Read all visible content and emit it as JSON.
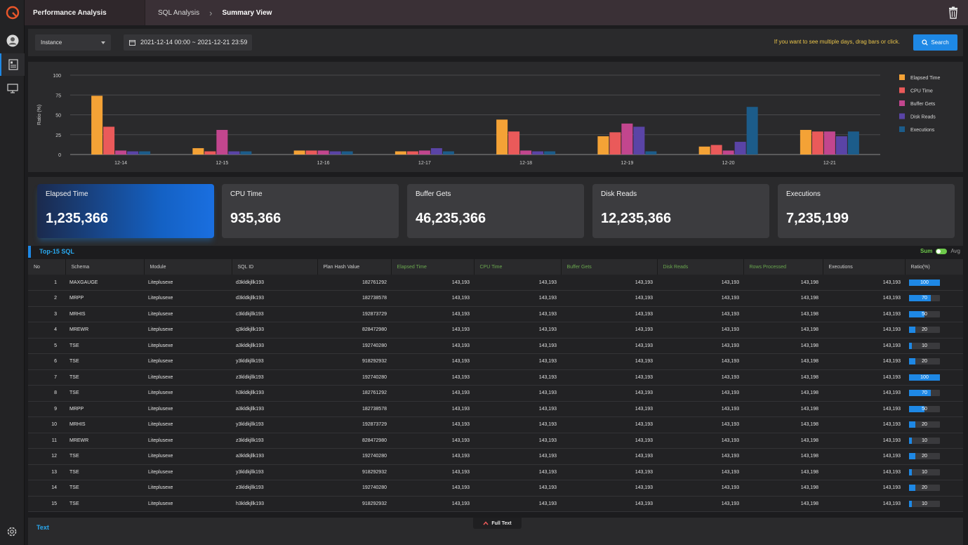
{
  "header": {
    "tab": "Performance Analysis",
    "crumb": "SQL Analysis",
    "current": "Summary View"
  },
  "filter": {
    "instance": "Instance",
    "date_range": "2021-12-14 00:00 ~ 2021-12-21 23:59",
    "hint": "If you want to see multiple days, drag bars or click.",
    "search_label": "Search"
  },
  "chart_data": {
    "type": "bar",
    "ylabel": "Ratio (%)",
    "ylim": [
      0,
      100
    ],
    "yticks": [
      0,
      25,
      50,
      75,
      100
    ],
    "categories": [
      "12-14",
      "12-15",
      "12-16",
      "12-17",
      "12-18",
      "12-19",
      "12-20",
      "12-21"
    ],
    "series": [
      {
        "name": "Elapsed Time",
        "color": "#f4a236",
        "values": [
          74,
          8,
          5,
          4,
          44,
          23,
          10,
          31
        ]
      },
      {
        "name": "CPU Time",
        "color": "#ea5a5a",
        "values": [
          35,
          4,
          5,
          4,
          29,
          28,
          12,
          29
        ]
      },
      {
        "name": "Buffer Gets",
        "color": "#c2468e",
        "values": [
          5,
          31,
          5,
          5,
          5,
          39,
          5,
          29
        ]
      },
      {
        "name": "Disk Reads",
        "color": "#5a44a6",
        "values": [
          4,
          4,
          4,
          8,
          4,
          35,
          16,
          23
        ]
      },
      {
        "name": "Executions",
        "color": "#1c5c8a",
        "values": [
          4,
          4,
          4,
          4,
          4,
          4,
          60,
          29
        ]
      }
    ]
  },
  "cards": [
    {
      "label": "Elapsed Time",
      "value": "1,235,366"
    },
    {
      "label": "CPU Time",
      "value": "935,366"
    },
    {
      "label": "Buffer Gets",
      "value": "46,235,366"
    },
    {
      "label": "Disk Reads",
      "value": "12,235,366"
    },
    {
      "label": "Executions",
      "value": "7,235,199"
    }
  ],
  "table": {
    "title": "Top-15 SQL",
    "sum_label": "Sum",
    "avg_label": "Avg",
    "columns": [
      "No",
      "Schema",
      "Module",
      "SQL ID",
      "Plan Hash Value",
      "Elapsed Time",
      "CPU Time",
      "Buffer Gets",
      "Disk Reads",
      "Rows Processed",
      "Executions",
      "Ratio(%)"
    ],
    "rows": [
      [
        "1",
        "MAXGAUGE",
        "Liteplusexe",
        "d3kldkjllk193",
        "182761292",
        "143,193",
        "143,193",
        "143,193",
        "143,193",
        "143,198",
        "143,193",
        "100"
      ],
      [
        "2",
        "MRPP",
        "Liteplusexe",
        "d3kldkjllk193",
        "182738578",
        "143,193",
        "143,193",
        "143,193",
        "143,193",
        "143,198",
        "143,193",
        "70"
      ],
      [
        "3",
        "MRHIS",
        "Liteplusexe",
        "c3kldkjllk193",
        "192873729",
        "143,193",
        "143,193",
        "143,193",
        "143,193",
        "143,198",
        "143,193",
        "50"
      ],
      [
        "4",
        "MREWR",
        "Liteplusexe",
        "q3kldkjllk193",
        "828472980",
        "143,193",
        "143,193",
        "143,193",
        "143,193",
        "143,198",
        "143,193",
        "20"
      ],
      [
        "5",
        "TSE",
        "Liteplusexe",
        "a3kldkjllk193",
        "192740280",
        "143,193",
        "143,193",
        "143,193",
        "143,193",
        "143,198",
        "143,193",
        "10"
      ],
      [
        "6",
        "TSE",
        "Liteplusexe",
        "y3kldkjllk193",
        "918292932",
        "143,193",
        "143,193",
        "143,193",
        "143,193",
        "143,198",
        "143,193",
        "20"
      ],
      [
        "7",
        "TSE",
        "Liteplusexe",
        "z3kldkjllk193",
        "192740280",
        "143,193",
        "143,193",
        "143,193",
        "143,193",
        "143,198",
        "143,193",
        "100"
      ],
      [
        "8",
        "TSE",
        "Liteplusexe",
        "h3kldkjllk193",
        "182761292",
        "143,193",
        "143,193",
        "143,193",
        "143,193",
        "143,198",
        "143,193",
        "70"
      ],
      [
        "9",
        "MRPP",
        "Liteplusexe",
        "a3kldkjllk193",
        "182738578",
        "143,193",
        "143,193",
        "143,193",
        "143,193",
        "143,198",
        "143,193",
        "50"
      ],
      [
        "10",
        "MRHIS",
        "Liteplusexe",
        "y3kldkjllk193",
        "192873729",
        "143,193",
        "143,193",
        "143,193",
        "143,193",
        "143,198",
        "143,193",
        "20"
      ],
      [
        "11",
        "MREWR",
        "Liteplusexe",
        "z3kldkjllk193",
        "828472980",
        "143,193",
        "143,193",
        "143,193",
        "143,193",
        "143,198",
        "143,193",
        "10"
      ],
      [
        "12",
        "TSE",
        "Liteplusexe",
        "a3kldkjllk193",
        "192740280",
        "143,193",
        "143,193",
        "143,193",
        "143,193",
        "143,198",
        "143,193",
        "20"
      ],
      [
        "13",
        "TSE",
        "Liteplusexe",
        "y3kldkjllk193",
        "918292932",
        "143,193",
        "143,193",
        "143,193",
        "143,193",
        "143,198",
        "143,193",
        "10"
      ],
      [
        "14",
        "TSE",
        "Liteplusexe",
        "z3kldkjllk193",
        "192740280",
        "143,193",
        "143,193",
        "143,193",
        "143,193",
        "143,198",
        "143,193",
        "20"
      ],
      [
        "15",
        "TSE",
        "Liteplusexe",
        "h3kldkjllk193",
        "918292932",
        "143,193",
        "143,193",
        "143,193",
        "143,193",
        "143,198",
        "143,193",
        "10"
      ]
    ]
  },
  "textpanel": {
    "label": "Text",
    "full_text_label": "Full Text"
  },
  "icons": {
    "logo": "logo-icon",
    "user": "user-icon",
    "report": "report-icon",
    "monitor": "monitor-icon",
    "settings": "gear-icon",
    "trash": "trash-icon",
    "search": "search-icon",
    "calendar": "calendar-icon",
    "chevron": "chevron-up-icon"
  }
}
